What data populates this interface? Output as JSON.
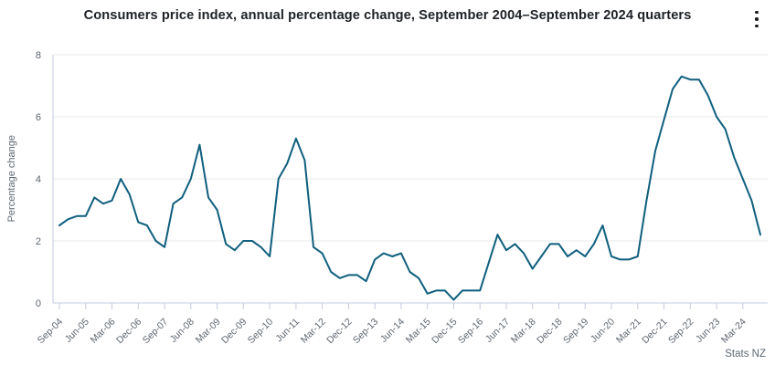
{
  "header": {
    "title": "Consumers price index, annual percentage change, September 2004–September 2024 quarters"
  },
  "menu": {
    "icon": "kebab-menu"
  },
  "footer": {
    "attribution": "Stats NZ"
  },
  "colors": {
    "line": "#0f5f7d",
    "grid": "#e7e8ea",
    "axis": "#c3cbdf",
    "tick_label": "#5d6670",
    "title": "#1d2126",
    "axis_title": "#5c6873",
    "menu_icon": "#1a1c1f",
    "background": "#ffffff"
  },
  "chart_data": {
    "type": "line",
    "title": "Consumers price index, annual percentage change, September 2004–September 2024 quarters",
    "xlabel": "",
    "ylabel": "Percentage change",
    "ylim": [
      0,
      8
    ],
    "yticks": [
      0,
      2,
      4,
      6,
      8
    ],
    "grid": "horizontal",
    "legend": "none",
    "x_tick_every": 3,
    "x_tick_labels": [
      "Sep-04",
      "Jun-05",
      "Mar-06",
      "Dec-06",
      "Sep-07",
      "Jun-08",
      "Mar-09",
      "Dec-09",
      "Sep-10",
      "Jun-11",
      "Mar-12",
      "Dec-12",
      "Sep-13",
      "Jun-14",
      "Mar-15",
      "Dec-15",
      "Sep-16",
      "Jun-17",
      "Mar-18",
      "Dec-18",
      "Sep-19",
      "Jun-20",
      "Mar-21",
      "Dec-21",
      "Sep-22",
      "Jun-23",
      "Mar-24"
    ],
    "categories": [
      "Sep-04",
      "Dec-04",
      "Mar-05",
      "Jun-05",
      "Sep-05",
      "Dec-05",
      "Mar-06",
      "Jun-06",
      "Sep-06",
      "Dec-06",
      "Mar-07",
      "Jun-07",
      "Sep-07",
      "Dec-07",
      "Mar-08",
      "Jun-08",
      "Sep-08",
      "Dec-08",
      "Mar-09",
      "Jun-09",
      "Sep-09",
      "Dec-09",
      "Mar-10",
      "Jun-10",
      "Sep-10",
      "Dec-10",
      "Mar-11",
      "Jun-11",
      "Sep-11",
      "Dec-11",
      "Mar-12",
      "Jun-12",
      "Sep-12",
      "Dec-12",
      "Mar-13",
      "Jun-13",
      "Sep-13",
      "Dec-13",
      "Mar-14",
      "Jun-14",
      "Sep-14",
      "Dec-14",
      "Mar-15",
      "Jun-15",
      "Sep-15",
      "Dec-15",
      "Mar-16",
      "Jun-16",
      "Sep-16",
      "Dec-16",
      "Mar-17",
      "Jun-17",
      "Sep-17",
      "Dec-17",
      "Mar-18",
      "Jun-18",
      "Sep-18",
      "Dec-18",
      "Mar-19",
      "Jun-19",
      "Sep-19",
      "Dec-19",
      "Mar-20",
      "Jun-20",
      "Sep-20",
      "Dec-20",
      "Mar-21",
      "Jun-21",
      "Sep-21",
      "Dec-21",
      "Mar-22",
      "Jun-22",
      "Sep-22",
      "Dec-22",
      "Mar-23",
      "Jun-23",
      "Sep-23",
      "Dec-23",
      "Mar-24",
      "Jun-24",
      "Sep-24"
    ],
    "series": [
      {
        "name": "Consumers price index, annual percentage change",
        "values": [
          2.5,
          2.7,
          2.8,
          2.8,
          3.4,
          3.2,
          3.3,
          4.0,
          3.5,
          2.6,
          2.5,
          2.0,
          1.8,
          3.2,
          3.4,
          4.0,
          5.1,
          3.4,
          3.0,
          1.9,
          1.7,
          2.0,
          2.0,
          1.8,
          1.5,
          4.0,
          4.5,
          5.3,
          4.6,
          1.8,
          1.6,
          1.0,
          0.8,
          0.9,
          0.9,
          0.7,
          1.4,
          1.6,
          1.5,
          1.6,
          1.0,
          0.8,
          0.3,
          0.4,
          0.4,
          0.1,
          0.4,
          0.4,
          0.4,
          1.3,
          2.2,
          1.7,
          1.9,
          1.6,
          1.1,
          1.5,
          1.9,
          1.9,
          1.5,
          1.7,
          1.5,
          1.9,
          2.5,
          1.5,
          1.4,
          1.4,
          1.5,
          3.3,
          4.9,
          5.9,
          6.9,
          7.3,
          7.2,
          7.2,
          6.7,
          6.0,
          5.6,
          4.7,
          4.0,
          3.3,
          2.2
        ]
      }
    ]
  }
}
